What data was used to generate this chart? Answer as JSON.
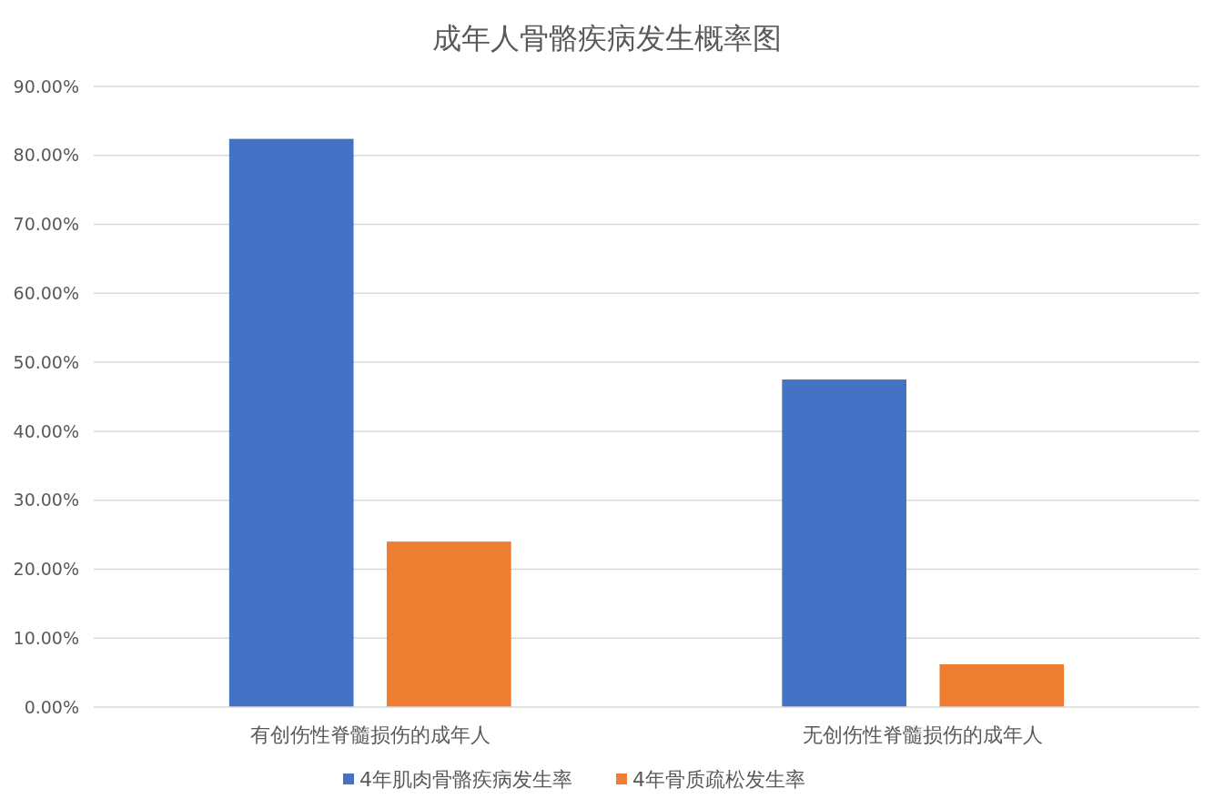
{
  "chart_data": {
    "type": "bar",
    "title": "成年人骨骼疾病发生概率图",
    "categories": [
      "有创伤性脊髓损伤的成年人",
      "无创伤性脊髓损伤的成年人"
    ],
    "series": [
      {
        "name": "4年肌肉骨骼疾病发生率",
        "color": "#4472c4",
        "values": [
          82.4,
          47.5
        ]
      },
      {
        "name": "4年骨质疏松发生率",
        "color": "#ed7d31",
        "values": [
          24.0,
          6.2
        ]
      }
    ],
    "ylim": [
      0,
      90
    ],
    "yticks": [
      {
        "value": 0,
        "label": "0.00%"
      },
      {
        "value": 10,
        "label": "10.00%"
      },
      {
        "value": 20,
        "label": "20.00%"
      },
      {
        "value": 30,
        "label": "30.00%"
      },
      {
        "value": 40,
        "label": "40.00%"
      },
      {
        "value": 50,
        "label": "50.00%"
      },
      {
        "value": 60,
        "label": "60.00%"
      },
      {
        "value": 70,
        "label": "70.00%"
      },
      {
        "value": 80,
        "label": "80.00%"
      },
      {
        "value": 90,
        "label": "90.00%"
      }
    ],
    "grid": "y",
    "legend": "bottom"
  }
}
